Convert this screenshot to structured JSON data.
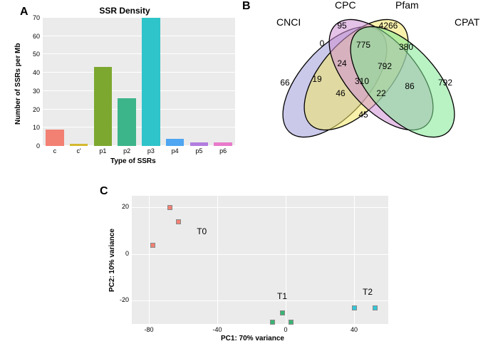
{
  "panelA": {
    "label": "A",
    "type": "bar",
    "title": "SSR Density",
    "xlabel": "Type of SSRs",
    "ylabel": "Number of SSRs per Mb",
    "categories": [
      "c",
      "c'",
      "p1",
      "p2",
      "p3",
      "p4",
      "p5",
      "p6"
    ],
    "values": [
      9,
      1,
      43,
      26,
      71,
      4,
      2,
      2
    ],
    "bar_colors": [
      "#f28073",
      "#d4b92f",
      "#7da82f",
      "#3db58a",
      "#2fc4c9",
      "#4fa6f2",
      "#b17de0",
      "#e87acb"
    ],
    "ylim": [
      0,
      70
    ],
    "ytick_step": 10,
    "background_color": "#ebebeb",
    "grid_color": "#ffffff",
    "bar_width": 0.75,
    "label_fontsize": 9,
    "title_fontsize": 12
  },
  "panelB": {
    "label": "B",
    "type": "venn4",
    "set_labels": [
      "CNCI",
      "CPC",
      "Pfam",
      "CPAT"
    ],
    "set_colors": [
      "#9f9dd9",
      "#f2e666",
      "#cf8fd4",
      "#7fe892"
    ],
    "stroke": "#000000",
    "regions": {
      "CNCI_only": 66,
      "CPC_only": 95,
      "Pfam_only": 4266,
      "CPAT_only": 792,
      "CNCI_CPC": 0,
      "CPC_Pfam": 775,
      "Pfam_CPAT": 380,
      "CNCI_CPC_Pfam": 24,
      "CPC_Pfam_CPAT": 792,
      "CNCI_Pfam": 19,
      "CNCI_Pfam_CPAT": 46,
      "all4": 310,
      "CNCI_CPC_CPAT": 22,
      "CPC_CPAT": 86,
      "CNCI_CPAT": 45
    }
  },
  "panelC": {
    "label": "C",
    "type": "scatter",
    "xlabel": "PC1: 70% variance",
    "ylabel": "PC2: 10% variance",
    "xlim": [
      -90,
      60
    ],
    "xtick_step": 40,
    "xtick_start": -80,
    "ylim": [
      -30,
      25
    ],
    "ytick_step": 20,
    "ytick_start": -20,
    "background_color": "#ebebeb",
    "grid_color": "#ffffff",
    "clusters": [
      {
        "name": "T0",
        "color": "#f28073",
        "points": [
          [
            -78,
            4
          ],
          [
            -68,
            20
          ],
          [
            -63,
            14
          ]
        ]
      },
      {
        "name": "T1",
        "color": "#39b573",
        "points": [
          [
            -8,
            -29
          ],
          [
            -2,
            -25
          ],
          [
            3,
            -29
          ]
        ]
      },
      {
        "name": "T2",
        "color": "#33c7d9",
        "points": [
          [
            40,
            -23
          ],
          [
            52,
            -23
          ]
        ]
      }
    ],
    "cluster_label_pos": {
      "T0": [
        -52,
        12
      ],
      "T1": [
        -5,
        -16
      ],
      "T2": [
        45,
        -14
      ]
    }
  }
}
